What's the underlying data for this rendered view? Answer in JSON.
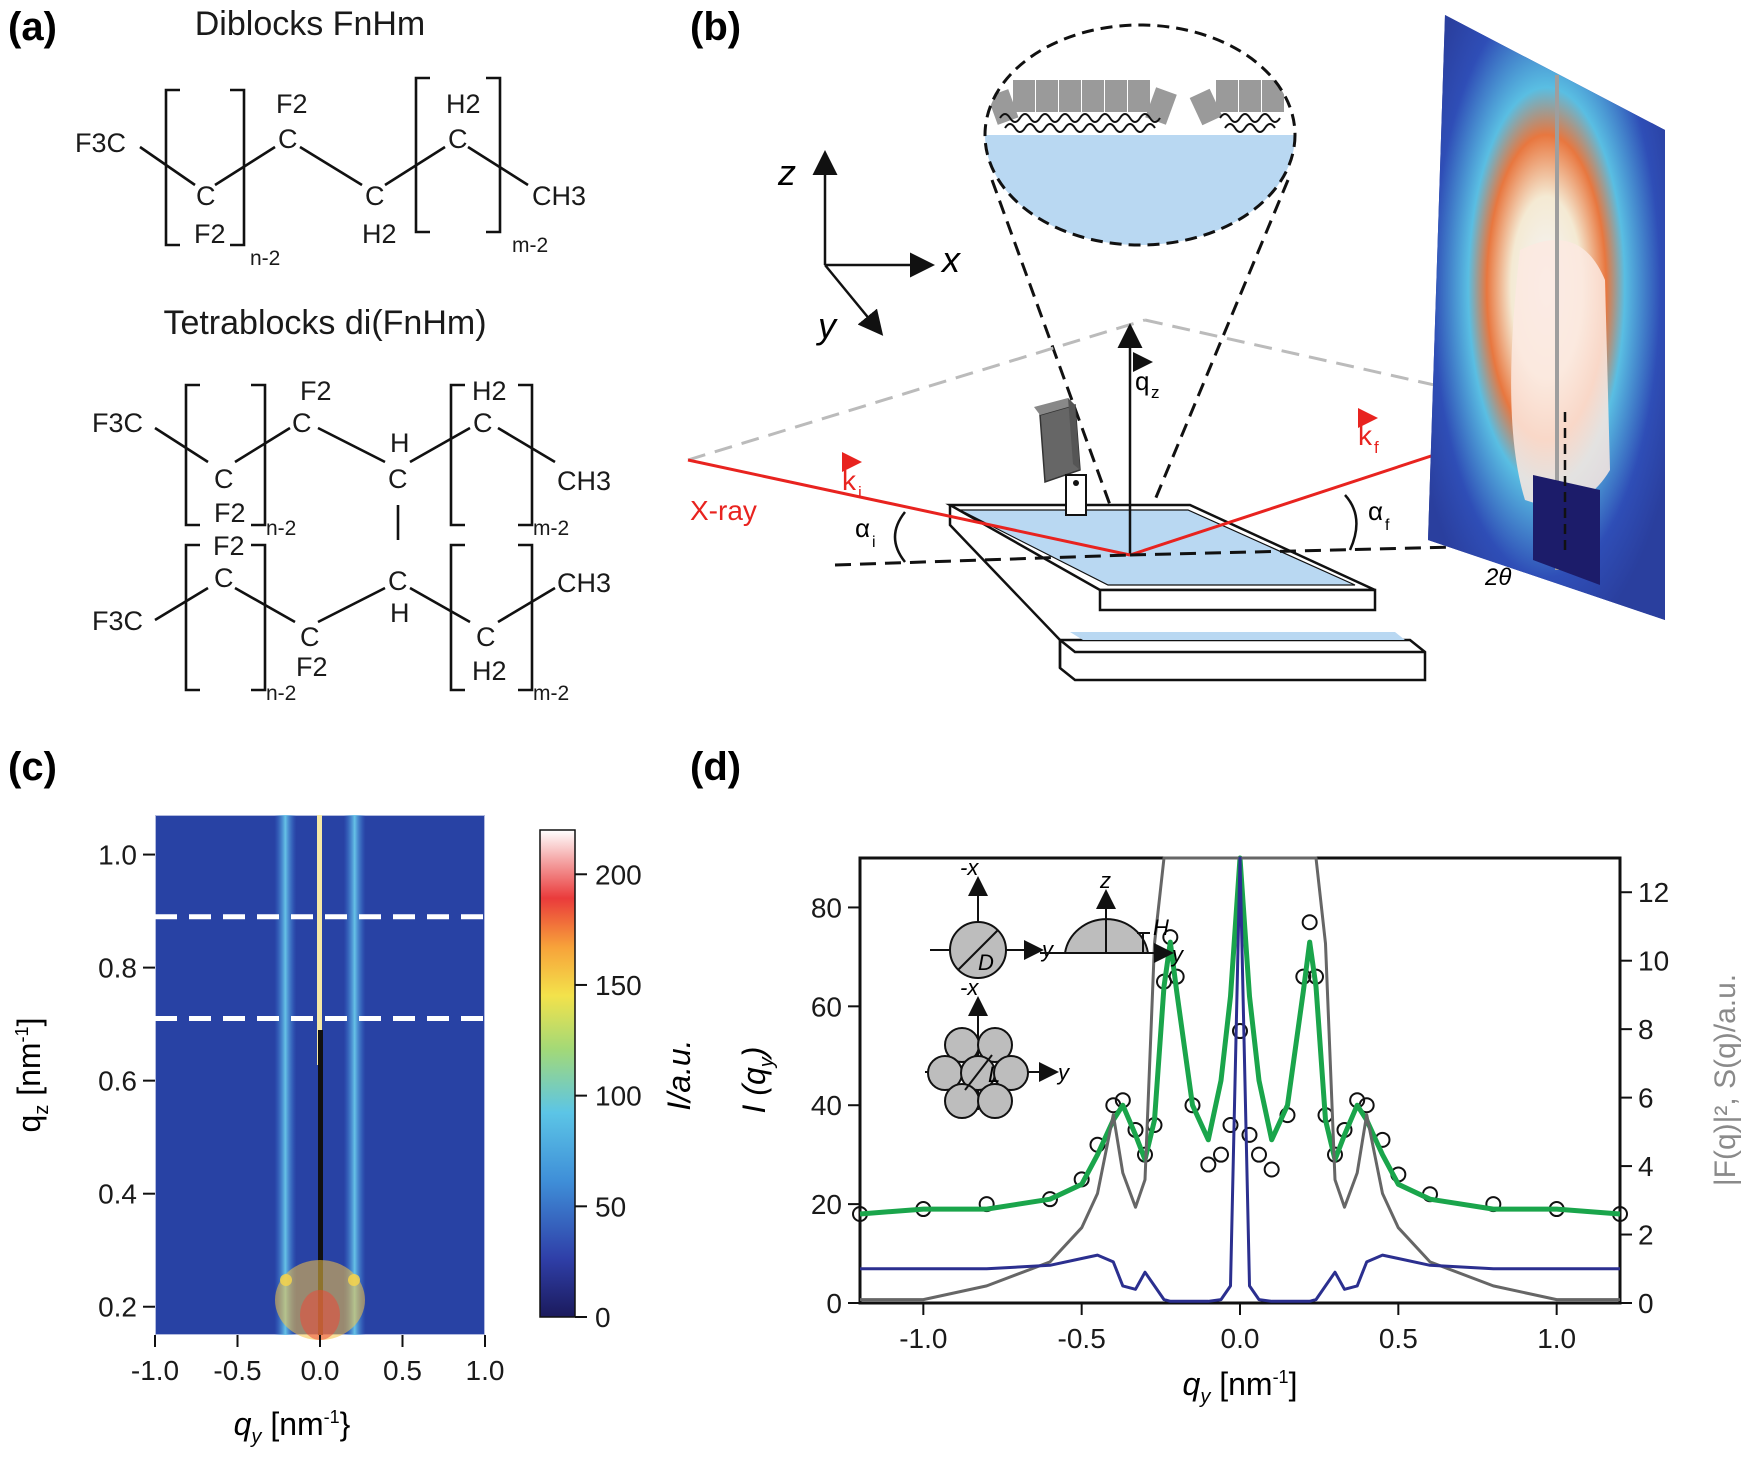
{
  "panels": {
    "a": {
      "label": "(a)",
      "diblock_title": "Diblocks FnHm",
      "tetrablock_title": "Tetrablocks di(FnHm)",
      "atoms": {
        "F3C": "F3C",
        "C": "C",
        "F2": "F2",
        "H2": "H2",
        "CH3": "CH3",
        "H": "H",
        "n_minus_2": "n-2",
        "m_minus_2": "m-2"
      }
    },
    "b": {
      "label": "(b)",
      "axis_z": "z",
      "axis_x": "x",
      "axis_y": "y",
      "xray": "X-ray",
      "ki": "k",
      "ki_sub": "i",
      "kf": "k",
      "kf_sub": "f",
      "qz": "q",
      "qz_sub": "z",
      "alpha_i": "α",
      "alpha_i_sub": "i",
      "alpha_f": "α",
      "alpha_f_sub": "f",
      "two_theta": "2θ",
      "colors": {
        "beam": "#e8231f",
        "water": "#b9d8f2"
      }
    },
    "c": {
      "label": "(c)",
      "xlabel": "q",
      "xlabel_sub": "y",
      "xlabel_unit": " [nm",
      "xlabel_sup": "-1",
      "xlabel_close": "}",
      "ylabel": "q",
      "ylabel_sub": "z",
      "ylabel_unit": " [nm",
      "ylabel_sup": "-1",
      "ylabel_close": "]",
      "colorbar_label": "I/a.u.",
      "colorbar_ticks": [
        "0",
        "50",
        "100",
        "150",
        "200"
      ],
      "xticks": [
        "-1.0",
        "-0.5",
        "0.0",
        "0.5",
        "1.0"
      ],
      "yticks": [
        "0.2",
        "0.4",
        "0.6",
        "0.8",
        "1.0"
      ]
    },
    "d": {
      "label": "(d)",
      "xlabel": "q",
      "xlabel_sub": "y",
      "xlabel_unit": " [nm",
      "xlabel_sup": "-1",
      "xlabel_close": "]",
      "ylabel": "I (q",
      "ylabel_sub": "y",
      "ylabel_close": ")",
      "y2label": "|F(q)|², S(q)/a.u.",
      "xticks": [
        "-1.0",
        "-0.5",
        "0.0",
        "0.5",
        "1.0"
      ],
      "yticks": [
        "0",
        "20",
        "40",
        "60",
        "80"
      ],
      "y2ticks": [
        "0",
        "2",
        "4",
        "6",
        "8",
        "10",
        "12"
      ],
      "inset": {
        "mx": "-x",
        "y": "y",
        "z": "z",
        "D": "D",
        "H": "H",
        "L": "L"
      }
    }
  },
  "chart_data": [
    {
      "type": "heatmap",
      "title": "",
      "xlabel": "qy [nm-1}",
      "ylabel": "qz [nm-1]",
      "xlim": [
        -1.0,
        1.0
      ],
      "ylim": [
        0.15,
        1.07
      ],
      "colorbar": {
        "label": "I/a.u.",
        "range": [
          0,
          220
        ]
      },
      "rod_positions_qy": [
        -0.21,
        0.21
      ],
      "dashed_lines_qz": [
        0.89,
        0.71
      ]
    },
    {
      "type": "line",
      "title": "",
      "xlabel": "qy [nm-1]",
      "ylabel": "I (qy)",
      "y2label": "|F(q)|², S(q)/a.u.",
      "xlim": [
        -1.2,
        1.2
      ],
      "ylim": [
        0,
        90
      ],
      "y2lim": [
        0,
        13
      ],
      "x": [
        -1.2,
        -1.0,
        -0.8,
        -0.6,
        -0.5,
        -0.45,
        -0.4,
        -0.37,
        -0.33,
        -0.3,
        -0.27,
        -0.24,
        -0.22,
        -0.2,
        -0.15,
        -0.1,
        -0.06,
        -0.03,
        0.0,
        0.03,
        0.06,
        0.1,
        0.15,
        0.2,
        0.22,
        0.24,
        0.27,
        0.3,
        0.33,
        0.37,
        0.4,
        0.45,
        0.5,
        0.6,
        0.8,
        1.0,
        1.2
      ],
      "series": [
        {
          "values": [
            18,
            19,
            20,
            21,
            25,
            32,
            40,
            41,
            35,
            30,
            36,
            65,
            74,
            66,
            40,
            28,
            30,
            36,
            55,
            34,
            30,
            27,
            38,
            66,
            77,
            66,
            38,
            30,
            35,
            41,
            40,
            33,
            26,
            22,
            20,
            19,
            18
          ]
        },
        {
          "values": [
            18,
            19,
            19,
            21,
            24,
            30,
            37,
            40,
            34,
            29,
            37,
            64,
            73,
            63,
            40,
            33,
            45,
            62,
            90,
            62,
            45,
            33,
            40,
            63,
            73,
            64,
            37,
            29,
            34,
            40,
            37,
            30,
            24,
            21,
            19,
            19,
            18
          ]
        },
        {
          "values": [
            0.1,
            0.1,
            0.5,
            1.2,
            2.2,
            3.2,
            5.5,
            3.8,
            2.8,
            3.6,
            10.5,
            13,
            13,
            13,
            13,
            13,
            13,
            13,
            13,
            13,
            13,
            13,
            13,
            13,
            13,
            13,
            10.5,
            3.6,
            2.8,
            3.8,
            5.5,
            3.2,
            2.2,
            1.2,
            0.5,
            0.1,
            0.1
          ]
        },
        {
          "values": [
            1.0,
            1.0,
            1.0,
            1.1,
            1.3,
            1.4,
            1.2,
            0.5,
            0.4,
            0.9,
            0.5,
            0.1,
            0.05,
            0.05,
            0.05,
            0.05,
            0.1,
            0.5,
            13,
            0.5,
            0.1,
            0.05,
            0.05,
            0.05,
            0.05,
            0.1,
            0.5,
            0.9,
            0.4,
            0.5,
            1.2,
            1.4,
            1.3,
            1.1,
            1.0,
            1.0,
            1.0
          ]
        }
      ],
      "colors": [
        "#111111",
        "#1aa54b",
        "#666666",
        "#2b2f8f"
      ]
    }
  ]
}
